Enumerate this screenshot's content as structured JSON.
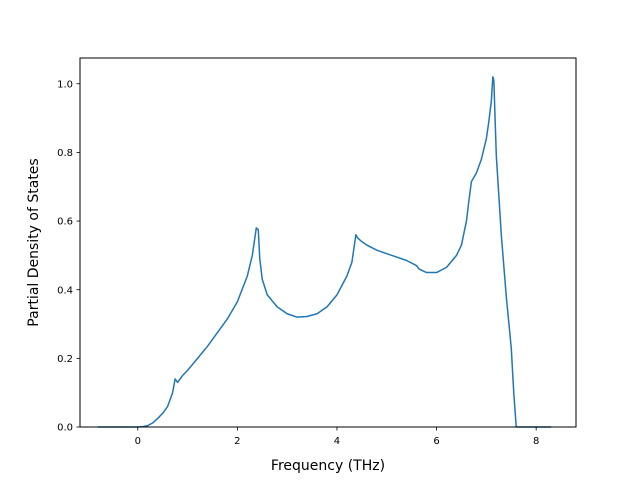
{
  "chart_data": {
    "type": "line",
    "title": "",
    "xlabel": "Frequency (THz)",
    "ylabel": "Partial Density of States",
    "xlim": [
      -1.16,
      8.8
    ],
    "ylim": [
      0.0,
      1.075
    ],
    "grid": false,
    "x_ticks": [
      0,
      2,
      4,
      6,
      8
    ],
    "y_ticks": [
      0.0,
      0.2,
      0.4,
      0.6,
      0.8,
      1.0
    ],
    "x_tick_labels": [
      "0",
      "2",
      "4",
      "6",
      "8"
    ],
    "y_tick_labels": [
      "0.0",
      "0.2",
      "0.4",
      "0.6",
      "0.8",
      "1.0"
    ],
    "series": [
      {
        "color": "#1f77b4",
        "x": [
          -0.8,
          -0.4,
          0.0,
          0.1,
          0.2,
          0.3,
          0.4,
          0.5,
          0.6,
          0.7,
          0.75,
          0.8,
          0.85,
          0.9,
          1.0,
          1.2,
          1.4,
          1.6,
          1.8,
          2.0,
          2.2,
          2.3,
          2.38,
          2.42,
          2.45,
          2.5,
          2.6,
          2.8,
          3.0,
          3.2,
          3.4,
          3.6,
          3.8,
          4.0,
          4.2,
          4.3,
          4.38,
          4.42,
          4.5,
          4.6,
          4.8,
          5.0,
          5.2,
          5.4,
          5.6,
          5.65,
          5.8,
          6.0,
          6.2,
          6.4,
          6.5,
          6.6,
          6.65,
          6.7,
          6.8,
          6.9,
          7.0,
          7.05,
          7.1,
          7.13,
          7.15,
          7.2,
          7.3,
          7.4,
          7.5,
          7.55,
          7.6,
          7.7,
          8.0,
          8.3
        ],
        "y": [
          0.0,
          0.0,
          0.0,
          0.001,
          0.004,
          0.012,
          0.025,
          0.04,
          0.06,
          0.1,
          0.14,
          0.13,
          0.14,
          0.15,
          0.165,
          0.2,
          0.235,
          0.275,
          0.315,
          0.365,
          0.44,
          0.5,
          0.58,
          0.575,
          0.49,
          0.43,
          0.385,
          0.35,
          0.33,
          0.32,
          0.322,
          0.33,
          0.35,
          0.385,
          0.44,
          0.48,
          0.56,
          0.55,
          0.54,
          0.53,
          0.515,
          0.505,
          0.495,
          0.485,
          0.47,
          0.46,
          0.45,
          0.45,
          0.465,
          0.5,
          0.53,
          0.6,
          0.66,
          0.715,
          0.74,
          0.78,
          0.84,
          0.89,
          0.95,
          1.02,
          1.01,
          0.79,
          0.56,
          0.38,
          0.23,
          0.1,
          0.0,
          0.0,
          0.0,
          0.0
        ]
      }
    ]
  }
}
